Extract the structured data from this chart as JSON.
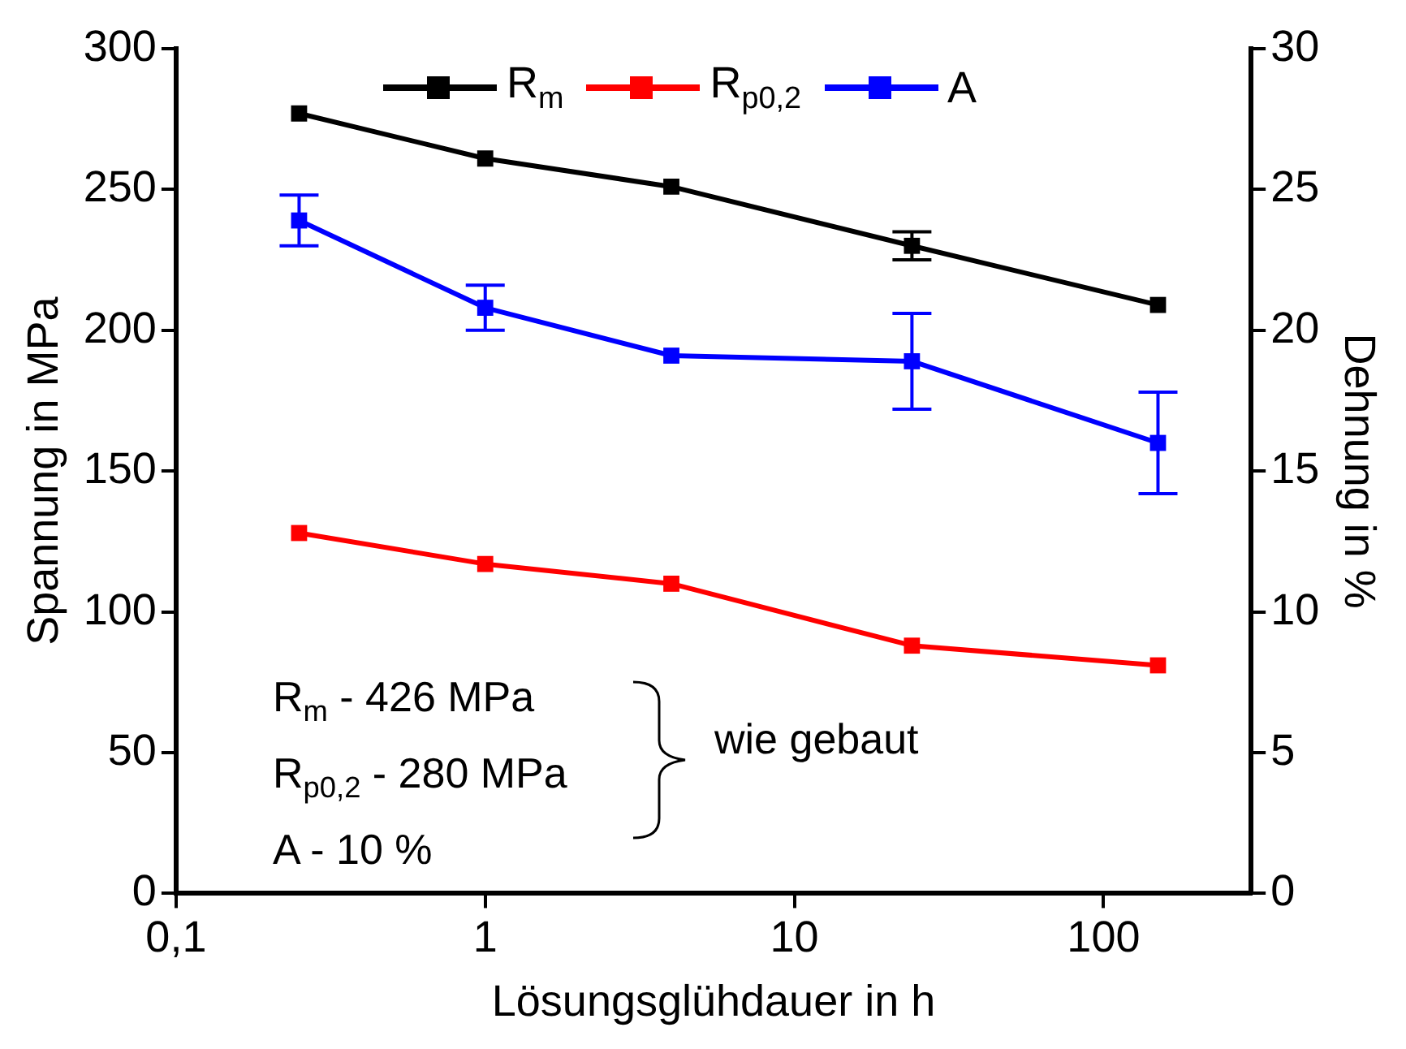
{
  "chart_data": {
    "type": "line",
    "xlabel": "Lösungsglühdauer in h",
    "ylabel": "Spannung in MPa",
    "y2label": "Dehnung in %",
    "x": [
      0.25,
      1,
      4,
      24,
      150
    ],
    "series": [
      {
        "name": "R$_{m}$",
        "color": "#000000",
        "values": [
          277,
          261,
          251,
          230,
          209
        ],
        "errors": [
          null,
          null,
          null,
          5,
          null
        ]
      },
      {
        "name": "R$_{p0,2}$",
        "color": "#ff0000",
        "values": [
          128,
          117,
          110,
          88,
          81
        ]
      },
      {
        "name": "A",
        "color": "#0000ff",
        "axis": "y2",
        "values": [
          23.9,
          20.8,
          19.1,
          18.9,
          16.0
        ],
        "errors": [
          0.9,
          0.8,
          null,
          1.7,
          1.8
        ]
      }
    ],
    "log": "x",
    "xlim": [
      0.1,
      300
    ],
    "xticks": [
      {
        "value": 0.1,
        "label": "0,1"
      },
      1,
      10,
      100
    ],
    "ylim": [
      0,
      300
    ],
    "yticks": [
      0,
      50,
      100,
      150,
      200,
      250,
      300
    ],
    "y2lim": [
      0,
      30
    ],
    "y2ticks": [
      0,
      5,
      10,
      15,
      20,
      25,
      30
    ],
    "grid": false,
    "legend": "top",
    "marker": "square",
    "line_style": "solid",
    "annotations": [
      "R$_{m}$ - 426 MPa",
      "R$_{p0,2}$ - 280 MPa",
      "A - 10 %",
      "wie gebaut"
    ]
  }
}
